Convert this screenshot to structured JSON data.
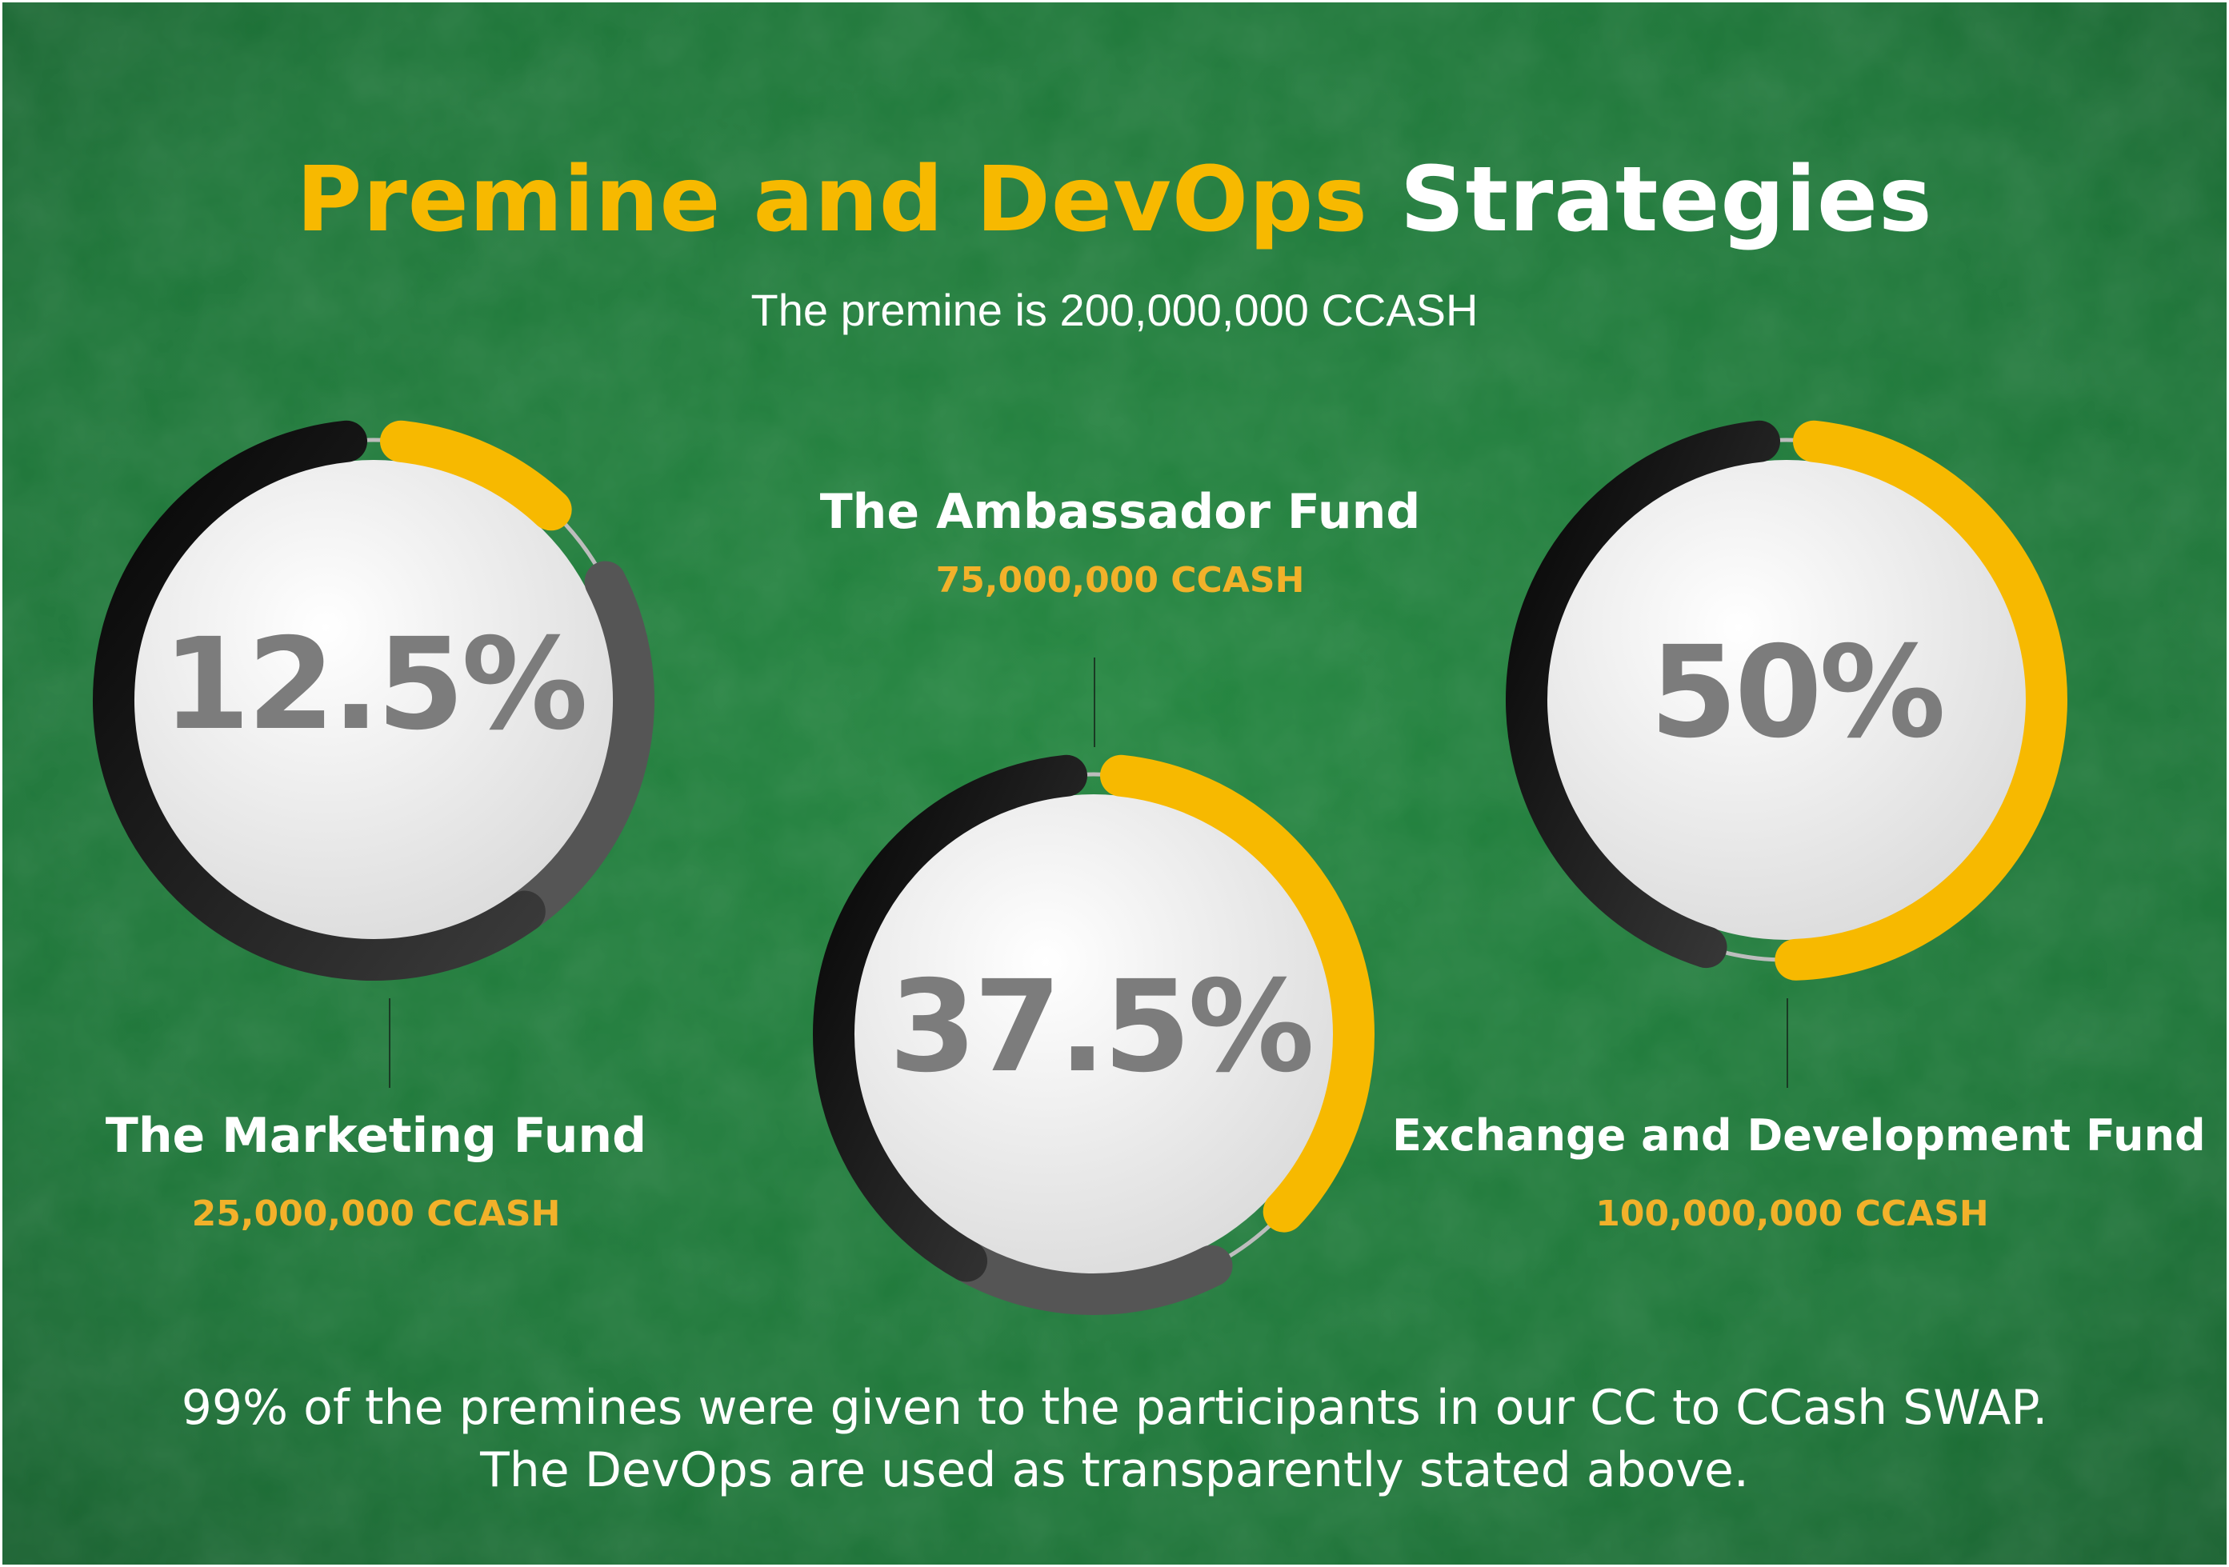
{
  "title": {
    "accent": "Premine and DevOps",
    "plain": "Strategies"
  },
  "subtitle": "The  premine is 200,000,000 CCASH",
  "colors": {
    "background": "#1f7a3d",
    "accent": "#f7b900",
    "amount": "#f2b12a",
    "percent_text": "#7c7c7c",
    "ring_dark": "#111111",
    "ring_gray": "#555555"
  },
  "chart_data": {
    "type": "pie",
    "total": 200000000,
    "unit": "CCASH",
    "slices": [
      {
        "name": "The  Marketing Fund",
        "amount_label": "25,000,000 CCASH",
        "value": 25000000,
        "percent": 12.5,
        "percent_label": "12.5%"
      },
      {
        "name": "The  Ambassador  Fund",
        "amount_label": "75,000,000 CCASH",
        "value": 75000000,
        "percent": 37.5,
        "percent_label": "37.5%"
      },
      {
        "name": "Exchange  and  Development  Fund",
        "amount_label": "100,000,000 CCASH",
        "value": 100000000,
        "percent": 50,
        "percent_label": "50%"
      }
    ]
  },
  "footer": {
    "line1": "99% of the premines were given to the participants in our CC to CCash SWAP.",
    "line2": "The DevOps are used as transparently stated above."
  }
}
